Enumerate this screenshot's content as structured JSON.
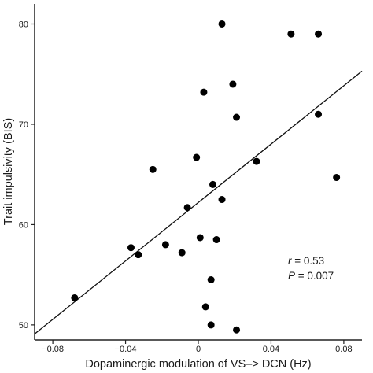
{
  "chart_data": {
    "type": "scatter",
    "xlabel": "Dopaminergic modulation of VS–> DCN (Hz)",
    "ylabel": "Trait impulsivity (BIS)",
    "xlim": [
      -0.09,
      0.09
    ],
    "ylim": [
      48.5,
      82
    ],
    "x_ticks": [
      -0.08,
      -0.04,
      0,
      0.04,
      0.08
    ],
    "x_tick_labels": [
      "−0.08",
      "−0.04",
      "0",
      "0.04",
      "0.08"
    ],
    "y_ticks": [
      50,
      60,
      70,
      80
    ],
    "y_tick_labels": [
      "50",
      "60",
      "70",
      "80"
    ],
    "grid": false,
    "points": [
      {
        "x": 0.013,
        "y": 80.0
      },
      {
        "x": 0.051,
        "y": 79.0
      },
      {
        "x": 0.066,
        "y": 79.0
      },
      {
        "x": 0.019,
        "y": 74.0
      },
      {
        "x": 0.003,
        "y": 73.2
      },
      {
        "x": 0.021,
        "y": 70.7
      },
      {
        "x": 0.066,
        "y": 71.0
      },
      {
        "x": -0.001,
        "y": 66.7
      },
      {
        "x": 0.032,
        "y": 66.3
      },
      {
        "x": -0.025,
        "y": 65.5
      },
      {
        "x": 0.076,
        "y": 64.7
      },
      {
        "x": 0.008,
        "y": 64.0
      },
      {
        "x": 0.013,
        "y": 62.5
      },
      {
        "x": -0.006,
        "y": 61.7
      },
      {
        "x": -0.037,
        "y": 57.7
      },
      {
        "x": -0.018,
        "y": 58.0
      },
      {
        "x": 0.001,
        "y": 58.7
      },
      {
        "x": 0.01,
        "y": 58.5
      },
      {
        "x": -0.033,
        "y": 57.0
      },
      {
        "x": -0.009,
        "y": 57.2
      },
      {
        "x": 0.007,
        "y": 54.5
      },
      {
        "x": -0.068,
        "y": 52.7
      },
      {
        "x": 0.004,
        "y": 51.8
      },
      {
        "x": 0.007,
        "y": 50.0
      },
      {
        "x": 0.021,
        "y": 49.5
      }
    ],
    "fit_line": {
      "x": [
        -0.09,
        0.09
      ],
      "y": [
        49.1,
        75.3
      ]
    },
    "annotation": {
      "r_symbol": "r",
      "r_value": " = 0.53",
      "p_symbol": "P",
      "p_value": " = 0.007"
    }
  }
}
